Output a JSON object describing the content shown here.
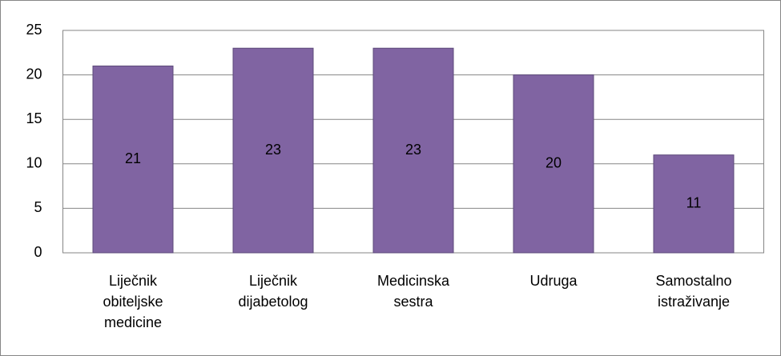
{
  "chart_data": {
    "type": "bar",
    "categories": [
      "Liječnik obiteljske medicine",
      "Liječnik dijabetolog",
      "Medicinska sestra",
      "Udruga",
      "Samostalno istraživanje"
    ],
    "values": [
      21,
      23,
      23,
      20,
      11
    ],
    "color": "#8064a2",
    "ylim": [
      0,
      25
    ],
    "yticks": [
      0,
      5,
      10,
      15,
      20,
      25
    ],
    "grid": true,
    "data_labels": true
  }
}
